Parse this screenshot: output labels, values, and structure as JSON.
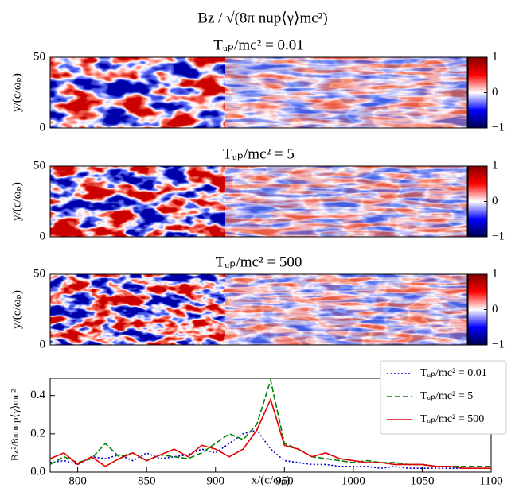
{
  "figure_title": "Bz / √(8π nup⟨γ⟩mc²)",
  "chart_data": [
    {
      "type": "heatmap",
      "title": "Tᵤₚ/mc² = 0.01",
      "ylabel": "y/(c/ωₚ)",
      "ylim": [
        0,
        50
      ],
      "yticks": [
        0,
        50
      ],
      "clim": [
        -1,
        1
      ],
      "cticks": [
        {
          "value": -1,
          "label": "−1"
        },
        0,
        1
      ]
    },
    {
      "type": "heatmap",
      "title": "Tᵤₚ/mc² = 5",
      "ylabel": "y/(c/ωₚ)",
      "ylim": [
        0,
        50
      ],
      "yticks": [
        0,
        50
      ],
      "clim": [
        -1,
        1
      ],
      "cticks": [
        {
          "value": -1,
          "label": "−1"
        },
        0,
        1
      ]
    },
    {
      "type": "heatmap",
      "title": "Tᵤₚ/mc² = 500",
      "ylabel": "y/(c/ωₚ)",
      "ylim": [
        0,
        50
      ],
      "yticks": [
        0,
        50
      ],
      "clim": [
        -1,
        1
      ],
      "cticks": [
        {
          "value": -1,
          "label": "−1"
        },
        0,
        1
      ]
    },
    {
      "type": "line",
      "xlabel": "x/(c/ωₚ)",
      "ylabel": "Bz²/8πnup⟨γ⟩mc²",
      "xlim": [
        780,
        1100
      ],
      "xticks": [
        800,
        850,
        900,
        950,
        1000,
        1050,
        1100
      ],
      "ylim": [
        0,
        0.49
      ],
      "yticks": [
        {
          "value": 0,
          "label": "0.0"
        },
        {
          "value": 0.2,
          "label": "0.2"
        },
        {
          "value": 0.4,
          "label": "0.4"
        }
      ],
      "legend": "upper right",
      "x": [
        780,
        790,
        800,
        810,
        820,
        830,
        840,
        850,
        860,
        870,
        880,
        890,
        900,
        910,
        920,
        930,
        940,
        950,
        960,
        970,
        980,
        990,
        1000,
        1010,
        1020,
        1030,
        1040,
        1050,
        1060,
        1070,
        1080,
        1090,
        1100
      ],
      "series": [
        {
          "name": "Tᵤₚ/mc² = 0.01",
          "color": "#0000cc",
          "style": "dotted",
          "values": [
            0.05,
            0.06,
            0.04,
            0.08,
            0.07,
            0.09,
            0.06,
            0.1,
            0.07,
            0.08,
            0.09,
            0.12,
            0.1,
            0.15,
            0.2,
            0.22,
            0.12,
            0.06,
            0.05,
            0.04,
            0.04,
            0.03,
            0.03,
            0.03,
            0.02,
            0.03,
            0.02,
            0.02,
            0.02,
            0.02,
            0.02,
            0.02,
            0.02
          ]
        },
        {
          "name": "Tᵤₚ/mc² = 5",
          "color": "#008000",
          "style": "dashed",
          "values": [
            0.04,
            0.08,
            0.05,
            0.07,
            0.15,
            0.08,
            0.1,
            0.06,
            0.09,
            0.08,
            0.07,
            0.1,
            0.15,
            0.2,
            0.17,
            0.25,
            0.48,
            0.15,
            0.12,
            0.08,
            0.07,
            0.06,
            0.05,
            0.06,
            0.05,
            0.05,
            0.04,
            0.04,
            0.03,
            0.03,
            0.03,
            0.03,
            0.03
          ]
        },
        {
          "name": "Tᵤₚ/mc² = 500",
          "color": "#e00000",
          "style": "solid",
          "values": [
            0.07,
            0.1,
            0.04,
            0.08,
            0.03,
            0.07,
            0.1,
            0.06,
            0.09,
            0.12,
            0.08,
            0.14,
            0.12,
            0.08,
            0.12,
            0.22,
            0.38,
            0.14,
            0.12,
            0.08,
            0.1,
            0.07,
            0.06,
            0.05,
            0.05,
            0.04,
            0.04,
            0.04,
            0.03,
            0.03,
            0.02,
            0.02,
            0.02
          ]
        }
      ]
    }
  ]
}
